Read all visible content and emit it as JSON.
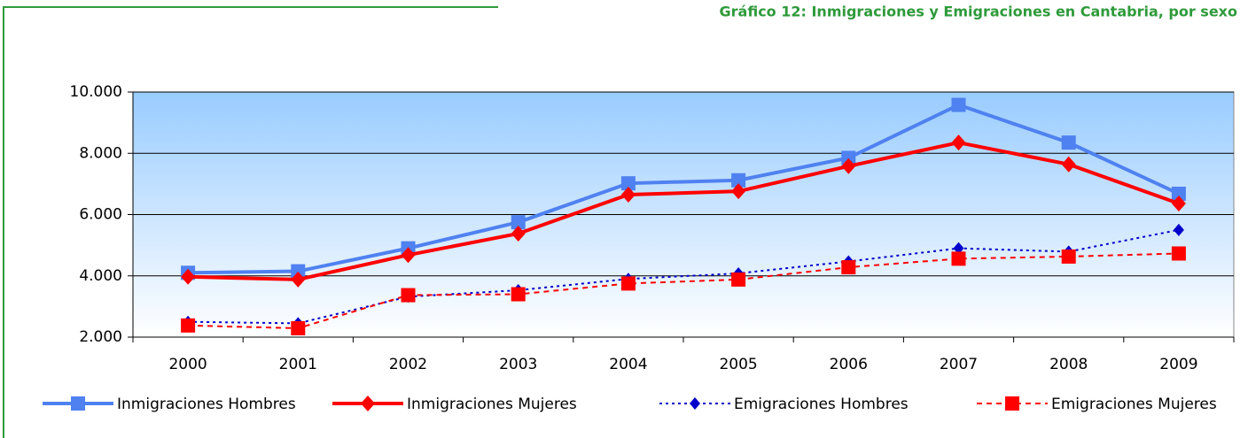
{
  "chart_data": {
    "type": "line",
    "title": "Gráfico 12: Inmigraciones y Emigraciones en Cantabria, por sexo",
    "categories": [
      "2000",
      "2001",
      "2002",
      "2003",
      "2004",
      "2005",
      "2006",
      "2007",
      "2008",
      "2009"
    ],
    "series": [
      {
        "name": "Inmigraciones Hombres",
        "color": "#4f81f0",
        "line_style": "solid",
        "marker": "square",
        "values": [
          4100,
          4150,
          4900,
          5750,
          7020,
          7120,
          7850,
          9580,
          8350,
          6680
        ]
      },
      {
        "name": "Inmigraciones Mujeres",
        "color": "#ff0000",
        "line_style": "solid",
        "marker": "diamond",
        "values": [
          3970,
          3880,
          4680,
          5380,
          6650,
          6760,
          7580,
          8350,
          7640,
          6360
        ]
      },
      {
        "name": "Emigraciones Hombres",
        "color": "#0000cc",
        "line_style": "dotted",
        "marker": "diamond",
        "values": [
          2500,
          2450,
          3320,
          3530,
          3900,
          4080,
          4470,
          4900,
          4790,
          5500
        ]
      },
      {
        "name": "Emigraciones Mujeres",
        "color": "#ff0000",
        "line_style": "dashed",
        "marker": "square",
        "values": [
          2380,
          2290,
          3370,
          3400,
          3750,
          3880,
          4280,
          4560,
          4630,
          4730
        ]
      }
    ],
    "ylim": [
      2000,
      10000
    ],
    "yticks": [
      {
        "value": 2000,
        "label": "2.000"
      },
      {
        "value": 4000,
        "label": "4.000"
      },
      {
        "value": 6000,
        "label": "6.000"
      },
      {
        "value": 8000,
        "label": "8.000"
      },
      {
        "value": 10000,
        "label": "10.000"
      }
    ],
    "grid": true,
    "legend": "bottom"
  }
}
